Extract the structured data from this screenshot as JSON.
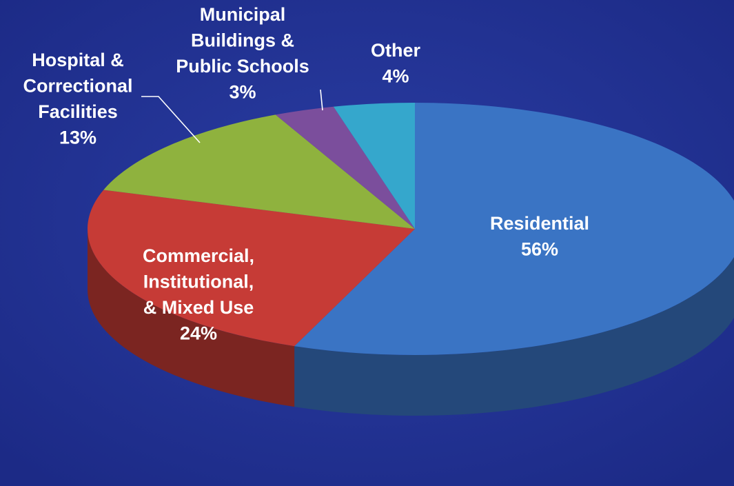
{
  "chart_data": {
    "type": "pie",
    "style": "3d",
    "slices": [
      {
        "label": [
          "Residential"
        ],
        "value": 56,
        "value_label": "56%",
        "color": "#3a74c4"
      },
      {
        "label": [
          "Commercial,",
          "Institutional,",
          "& Mixed Use"
        ],
        "value": 24,
        "value_label": "24%",
        "color": "#c63b36"
      },
      {
        "label": [
          "Hospital &",
          "Correctional",
          "Facilities"
        ],
        "value": 13,
        "value_label": "13%",
        "color": "#8fb23e"
      },
      {
        "label": [
          "Municipal",
          "Buildings &",
          "Public Schools"
        ],
        "value": 3,
        "value_label": "3%",
        "color": "#7b4e9c"
      },
      {
        "label": [
          "Other"
        ],
        "value": 4,
        "value_label": "4%",
        "color": "#35a7cc"
      }
    ]
  }
}
